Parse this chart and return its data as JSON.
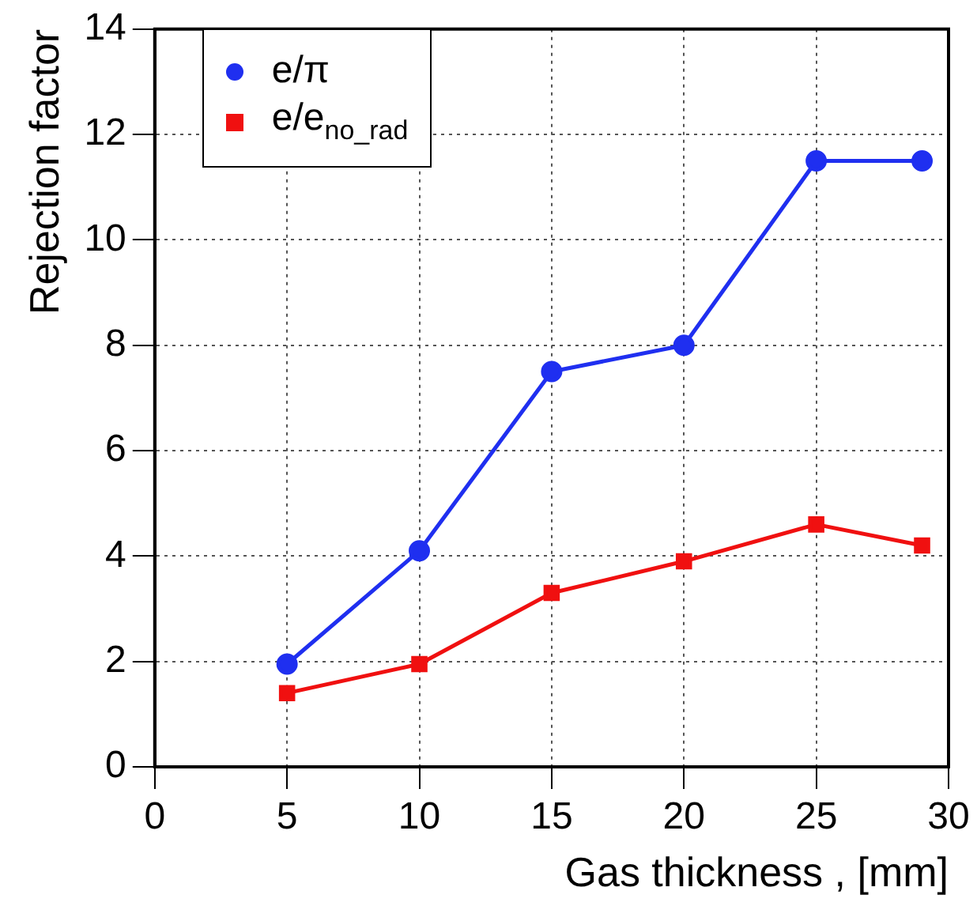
{
  "chart_data": {
    "type": "line",
    "xlabel": "Gas thickness , [mm]",
    "ylabel": "Rejection factor",
    "x": [
      5,
      10,
      15,
      20,
      25,
      29
    ],
    "series": [
      {
        "name": "e/π",
        "color": "#1f2ff0",
        "marker": "circle",
        "values": [
          1.95,
          4.1,
          7.5,
          8.0,
          11.5,
          11.5
        ]
      },
      {
        "name": "e/e$_{no_rad}$",
        "color": "#f01010",
        "marker": "square",
        "values": [
          1.4,
          1.95,
          3.3,
          3.9,
          4.6,
          4.2
        ]
      }
    ],
    "xlim": [
      0,
      30
    ],
    "xticks": [
      0,
      5,
      10,
      15,
      20,
      25,
      30
    ],
    "ylim": [
      0,
      14
    ],
    "yticks": [
      0,
      2,
      4,
      6,
      8,
      10,
      12,
      14
    ],
    "grid": true,
    "legend": "top left",
    "line_style": "solid"
  }
}
